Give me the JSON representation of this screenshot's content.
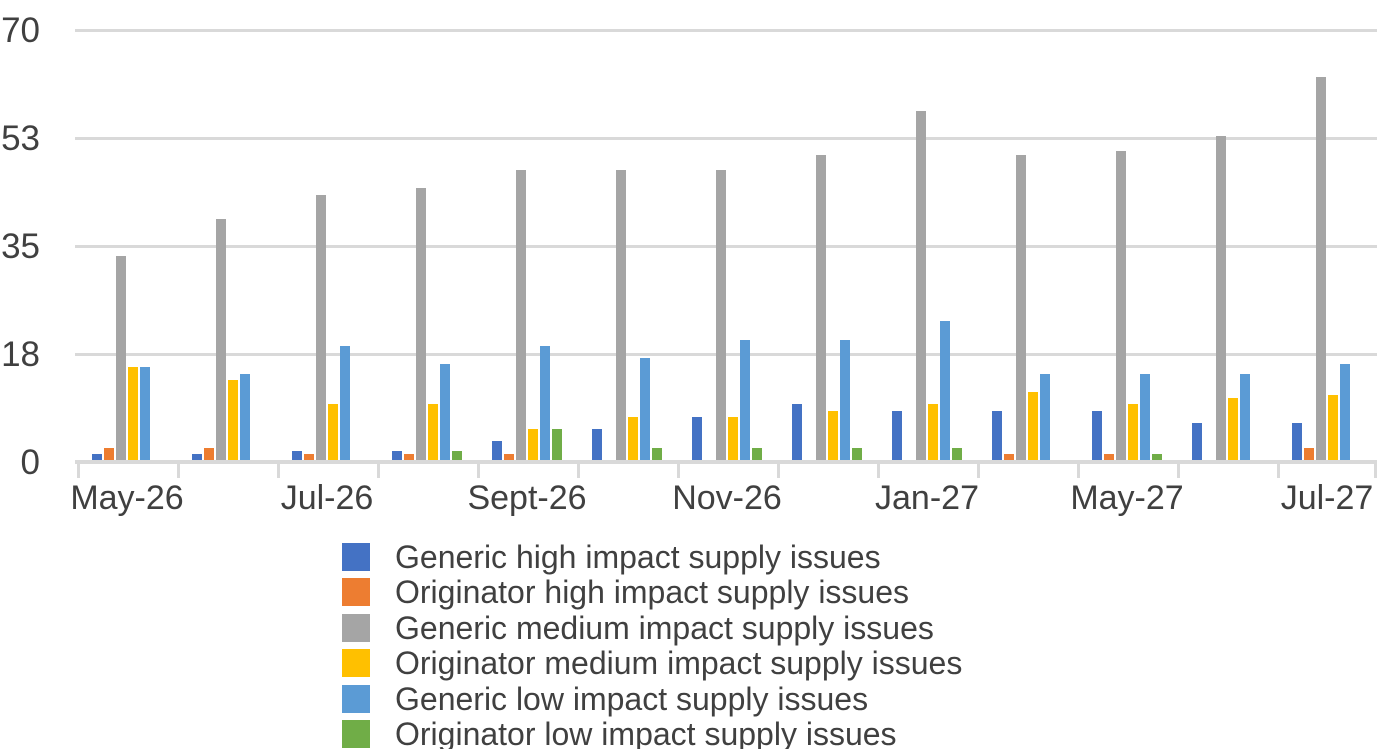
{
  "chart_data": {
    "type": "bar",
    "title": "",
    "group_labels": [
      "May-26",
      "",
      "Jul-26",
      "",
      "Sept-26",
      "",
      "Nov-26",
      "",
      "Jan-27",
      "",
      "May-27",
      "",
      "Jul-27"
    ],
    "series": [
      {
        "name": "Generic high impact supply issues",
        "color": "#4472C4",
        "values": [
          1,
          1,
          1.5,
          1.5,
          3,
          5,
          7,
          9,
          8,
          8,
          8,
          6,
          6
        ]
      },
      {
        "name": "Originator high impact supply issues",
        "color": "#ED7D31",
        "values": [
          2,
          2,
          1,
          1,
          1,
          0,
          0,
          0,
          0,
          1,
          1,
          0,
          2
        ]
      },
      {
        "name": "Generic medium impact supply issues",
        "color": "#A5A5A5",
        "values": [
          33,
          39,
          43,
          44,
          47,
          47,
          47,
          49.5,
          56.5,
          49.5,
          50,
          52.5,
          62
        ]
      },
      {
        "name": "Originator medium impact supply issues",
        "color": "#FFC000",
        "values": [
          15,
          13,
          9,
          9,
          5,
          7,
          7,
          8,
          9,
          11,
          9,
          10,
          10.5
        ]
      },
      {
        "name": "Generic low impact supply issues",
        "color": "#5B9BD5",
        "values": [
          15,
          14,
          18.5,
          15.5,
          18.5,
          16.5,
          19.5,
          19.5,
          22.5,
          14,
          14,
          14,
          15.5
        ]
      },
      {
        "name": "Originator low impact supply issues",
        "color": "#70AD47",
        "values": [
          0,
          0,
          0,
          1.5,
          5,
          2,
          2,
          2,
          2,
          0,
          1,
          0,
          0
        ]
      }
    ],
    "y_axis": {
      "tick_labels": [
        "0",
        "18",
        "35",
        "53",
        "70"
      ],
      "tick_values": [
        0,
        17.5,
        35,
        52.5,
        70
      ],
      "max": 70
    },
    "grid": true,
    "legend_position": "bottom",
    "colors": {
      "gridline": "#d9d9d9",
      "axis_line": "#d9d9d9",
      "text": "#404040",
      "background": "#ffffff"
    }
  }
}
